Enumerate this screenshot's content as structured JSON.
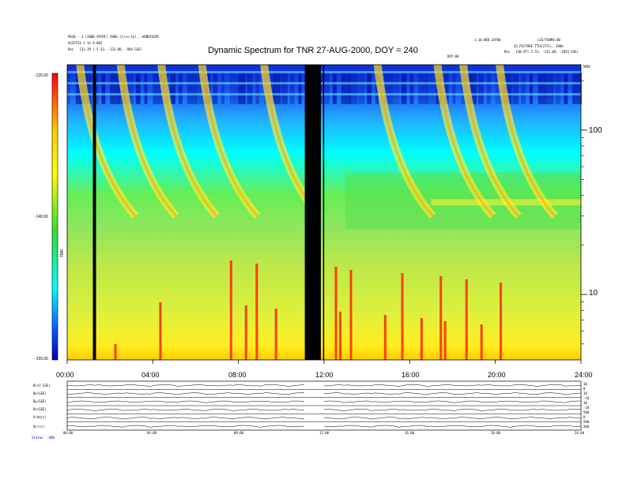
{
  "chart_data": {
    "type": "heatmap",
    "title": "Dynamic Spectrum for TNR 27-AUG-2000, DOY = 240",
    "header_left": [
      "9630 - 3 (2000 SPCRF) 2006 (1)(x:ty)...ARBOFUSPC",
      "ASIFFSS 3 to 6:002",
      "Res   131.39 (-5.33, -133.88, -984 GSE)"
    ],
    "header_right": [
      "1.10 WED 2UF00",
      "LSS/T00M4:00",
      "SS_PICTURE TTUC(571), 2006",
      "Res   130.97(-2.53, -133.88, -1054 GSE)"
    ],
    "header_mid": "DOY:00",
    "colorbar": {
      "ticks": [
        "-125.00",
        "-140.00",
        "-155.00"
      ],
      "label": "TNR"
    },
    "xaxis_ticks": [
      "00:00",
      "04:00",
      "08:00",
      "12:00",
      "16:00",
      "20:00",
      "24:00"
    ],
    "xlim": [
      0,
      24
    ],
    "yaxis": {
      "scale": "log",
      "units": "kHz",
      "ticks": [
        "100",
        "10"
      ],
      "ylim": [
        4,
        250
      ]
    },
    "data_gaps_hours": [
      [
        11.1,
        11.85
      ]
    ],
    "black_lines_hours": [
      1.2,
      11.95
    ],
    "type_iii_bursts_hours": [
      0.6,
      2.5,
      4.4,
      6.3,
      9.2,
      14.5,
      17.3,
      18.5,
      20.2
    ],
    "lower_panels": [
      {
        "label": "B(nT GSE)",
        "right": [
          "10",
          "0"
        ]
      },
      {
        "label": "Bx(GSE)",
        "right": [
          "10",
          "-10"
        ]
      },
      {
        "label": "By(GSE)",
        "right": [
          "10",
          "-10"
        ]
      },
      {
        "label": "Bz(GSE)",
        "right": [
          "500",
          "0"
        ]
      },
      {
        "label": "V(km/s)",
        "right": [
          "500",
          "300"
        ]
      },
      {
        "label": "N(/cc)",
        "right": [
          "10",
          "0"
        ]
      }
    ],
    "lower_xticks": [
      "00:00",
      "04:00",
      "08:00",
      "12:00",
      "16:00",
      "20:00",
      "24:00"
    ],
    "footer": "Status   ARD"
  }
}
